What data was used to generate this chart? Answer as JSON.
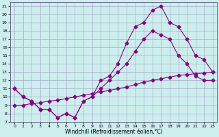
{
  "title": "",
  "xlabel": "Windchill (Refroidissement éolien,°C)",
  "background_color": "#cceeed",
  "grid_color": "#aaaacc",
  "line_color": "#880088",
  "xlim": [
    -0.5,
    23.5
  ],
  "ylim": [
    7,
    21.5
  ],
  "xticks": [
    0,
    1,
    2,
    3,
    4,
    5,
    6,
    7,
    8,
    9,
    10,
    11,
    12,
    13,
    14,
    15,
    16,
    17,
    18,
    19,
    20,
    21,
    22,
    23
  ],
  "yticks": [
    7,
    8,
    9,
    10,
    11,
    12,
    13,
    14,
    15,
    16,
    17,
    18,
    19,
    20,
    21
  ],
  "curve1_x": [
    0,
    1,
    2,
    3,
    4,
    5,
    6,
    7,
    8,
    9,
    10,
    11,
    12,
    13,
    14,
    15,
    16,
    17,
    18,
    19,
    20,
    21,
    22,
    23
  ],
  "curve1_y": [
    11,
    10,
    9.5,
    8.5,
    8.5,
    7.5,
    8,
    7.5,
    9.5,
    10,
    12,
    12.5,
    14,
    16.5,
    18.5,
    19,
    20.5,
    21,
    19,
    18.5,
    17,
    15,
    14.5,
    13
  ],
  "curve2_x": [
    0,
    1,
    2,
    3,
    4,
    5,
    6,
    7,
    8,
    9,
    10,
    11,
    12,
    13,
    14,
    15,
    16,
    17,
    18,
    19,
    20,
    21,
    22,
    23
  ],
  "curve2_y": [
    11,
    10,
    9.5,
    8.5,
    8.5,
    7.5,
    8,
    7.5,
    9.5,
    10,
    11,
    12,
    13,
    14,
    15.5,
    17,
    18,
    17.5,
    17,
    15,
    14,
    12.5,
    12,
    12
  ],
  "curve3_x": [
    0,
    1,
    2,
    3,
    4,
    5,
    6,
    7,
    8,
    9,
    10,
    11,
    12,
    13,
    14,
    15,
    16,
    17,
    18,
    19,
    20,
    21,
    22,
    23
  ],
  "curve3_y": [
    9,
    9,
    9.2,
    9.3,
    9.5,
    9.6,
    9.8,
    10,
    10.2,
    10.4,
    10.6,
    10.8,
    11,
    11.2,
    11.5,
    11.8,
    12,
    12.2,
    12.4,
    12.6,
    12.7,
    12.8,
    12.9,
    13
  ],
  "marker_size": 2.5,
  "linewidth": 0.8,
  "tick_fontsize": 4.5,
  "xlabel_fontsize": 5.5
}
